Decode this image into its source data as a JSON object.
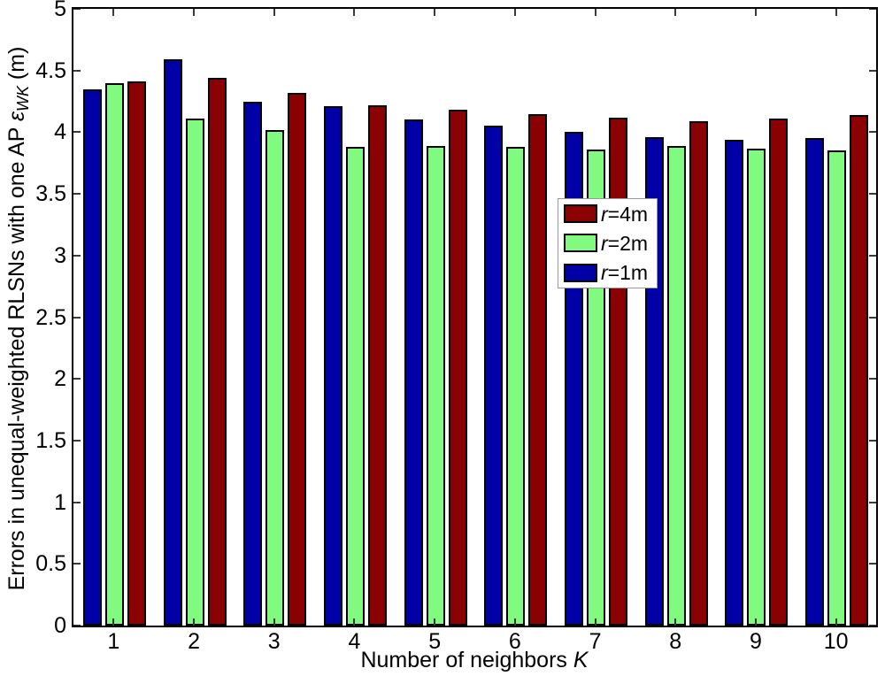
{
  "figure": {
    "background": "#ffffff",
    "axis_color": "#000000"
  },
  "chart_data": {
    "type": "bar",
    "title": "",
    "xlabel": "Number of neighbors K",
    "ylabel": "Errors in unequal-weighted RLSNs with one AP εWK (m)",
    "categories": [
      "1",
      "2",
      "3",
      "4",
      "5",
      "6",
      "7",
      "8",
      "9",
      "10"
    ],
    "series": [
      {
        "name": "r=1m",
        "color": "#0000a6",
        "values": [
          4.35,
          4.59,
          4.25,
          4.21,
          4.1,
          4.05,
          4.0,
          3.96,
          3.94,
          3.95
        ]
      },
      {
        "name": "r=2m",
        "color": "#80fb80",
        "values": [
          4.4,
          4.11,
          4.02,
          3.88,
          3.89,
          3.88,
          3.86,
          3.89,
          3.87,
          3.85
        ]
      },
      {
        "name": "r=4m",
        "color": "#8b0000",
        "values": [
          4.41,
          4.44,
          4.32,
          4.22,
          4.18,
          4.15,
          4.12,
          4.09,
          4.11,
          4.14
        ]
      }
    ],
    "legend": {
      "entries": [
        "r=4m",
        "r=2m",
        "r=1m"
      ],
      "position": "upper-center-right",
      "background": "#ffffff",
      "border_color": "#999999"
    },
    "ylim": [
      0,
      5
    ],
    "yticks": [
      "0",
      "0.5",
      "1",
      "1.5",
      "2",
      "2.5",
      "3",
      "3.5",
      "4",
      "4.5",
      "5"
    ],
    "grid": false,
    "bar_edge_color": "#000000"
  },
  "labels": {
    "xlabel_prefix": "Number of neighbors ",
    "xlabel_italic": "K",
    "ylabel_prefix": "Errors in unequal-weighted RLSNs with one AP ",
    "ylabel_symbol": "ε",
    "ylabel_subscript": "WK",
    "ylabel_suffix": " (m)"
  }
}
